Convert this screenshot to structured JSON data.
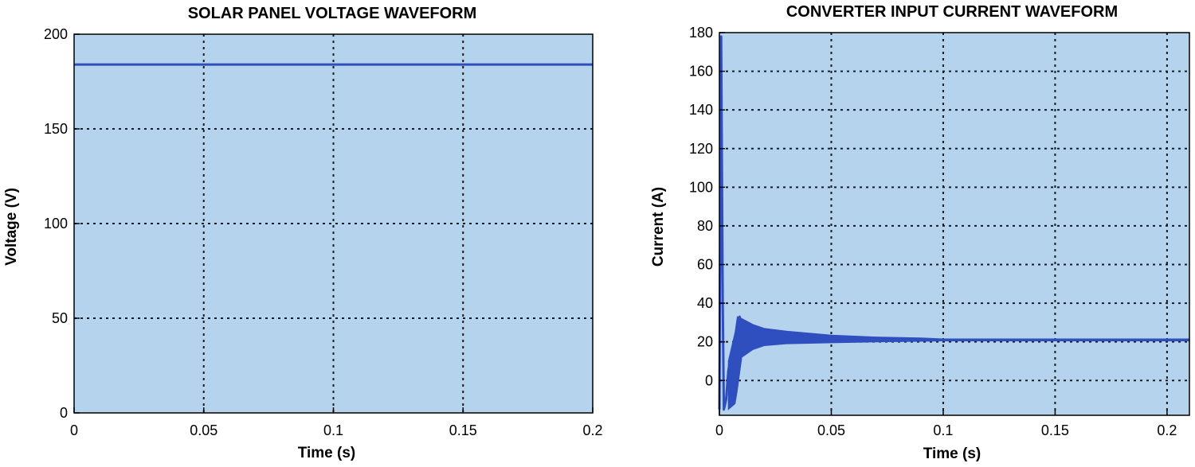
{
  "chart_data": [
    {
      "type": "line",
      "title": "SOLAR PANEL VOLTAGE WAVEFORM",
      "xlabel": "Time (s)",
      "ylabel": "Voltage (V)",
      "xlim": [
        0,
        0.2
      ],
      "ylim": [
        0,
        200
      ],
      "xticks": [
        0,
        0.05,
        0.1,
        0.15,
        0.2
      ],
      "xtick_labels": [
        "0",
        "0.05",
        "0.1",
        "0.15",
        "0.2"
      ],
      "yticks": [
        0,
        50,
        100,
        150,
        200
      ],
      "ytick_labels": [
        "0",
        "50",
        "100",
        "150",
        "200"
      ],
      "grid": true,
      "series": [
        {
          "name": "Voltage",
          "color": "#2f4fbf",
          "x": [
            0,
            0.2
          ],
          "y": [
            184,
            184
          ]
        }
      ]
    },
    {
      "type": "line",
      "title": "CONVERTER INPUT CURRENT WAVEFORM",
      "xlabel": "Time (s)",
      "ylabel": "Current (A)",
      "xlim": [
        0,
        0.21
      ],
      "ylim": [
        -18,
        180
      ],
      "xticks": [
        0,
        0.05,
        0.1,
        0.15,
        0.2
      ],
      "xtick_labels": [
        "0",
        "0.05",
        "0.1",
        "0.15",
        "0.2"
      ],
      "yticks": [
        0,
        20,
        40,
        60,
        80,
        100,
        120,
        140,
        160,
        180
      ],
      "ytick_labels": [
        "0",
        "20",
        "40",
        "60",
        "80",
        "100",
        "120",
        "140",
        "160",
        "180"
      ],
      "grid": true,
      "series": [
        {
          "name": "Current",
          "color": "#2f4fbf",
          "x": [
            0,
            0.0008,
            0.0015,
            0.002,
            0.003,
            0.004,
            0.005,
            0.006,
            0.007,
            0.008,
            0.009,
            0.01,
            0.012,
            0.015,
            0.02,
            0.03,
            0.05,
            0.07,
            0.1,
            0.15,
            0.21
          ],
          "y": [
            -15,
            178,
            40,
            -15,
            -10,
            5,
            12,
            8,
            15,
            25,
            33,
            30,
            27,
            25,
            24,
            23,
            22,
            21.5,
            21,
            21,
            21
          ]
        }
      ],
      "ripple_envelope": {
        "x": [
          0.004,
          0.007,
          0.008,
          0.01,
          0.015,
          0.02,
          0.03,
          0.05,
          0.07,
          0.09,
          0.1,
          0.21
        ],
        "upper": [
          10,
          25,
          33,
          32,
          29,
          27,
          25.5,
          23.5,
          22.5,
          22,
          21.5,
          21.5
        ],
        "lower": [
          -15,
          -12,
          -5,
          12,
          16,
          18,
          19,
          19.5,
          20,
          20.3,
          20.5,
          20.5
        ]
      }
    }
  ]
}
